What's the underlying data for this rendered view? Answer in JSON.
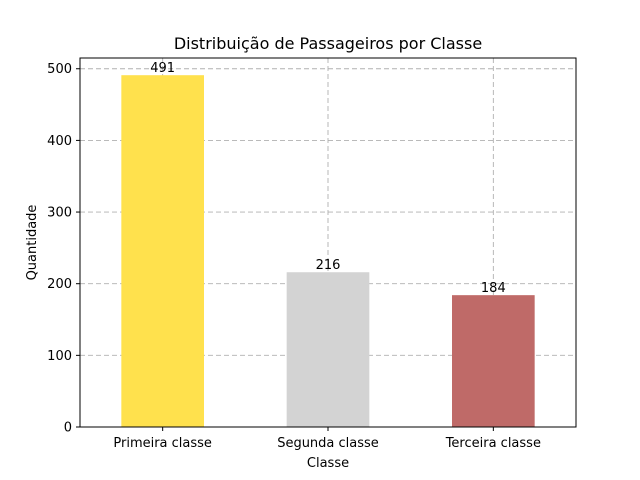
{
  "chart_data": {
    "type": "bar",
    "title": "Distribuição de Passageiros por Classe",
    "xlabel": "Classe",
    "ylabel": "Quantidade",
    "categories": [
      "Primeira classe",
      "Segunda classe",
      "Terceira classe"
    ],
    "values": [
      491,
      216,
      184
    ],
    "data_labels": [
      "491",
      "216",
      "184"
    ],
    "colors": [
      "#ffe14d",
      "#d3d3d3",
      "#bf6a68"
    ],
    "ylim": [
      0,
      515
    ],
    "yticks": [
      0,
      100,
      200,
      300,
      400,
      500
    ],
    "grid": true
  }
}
